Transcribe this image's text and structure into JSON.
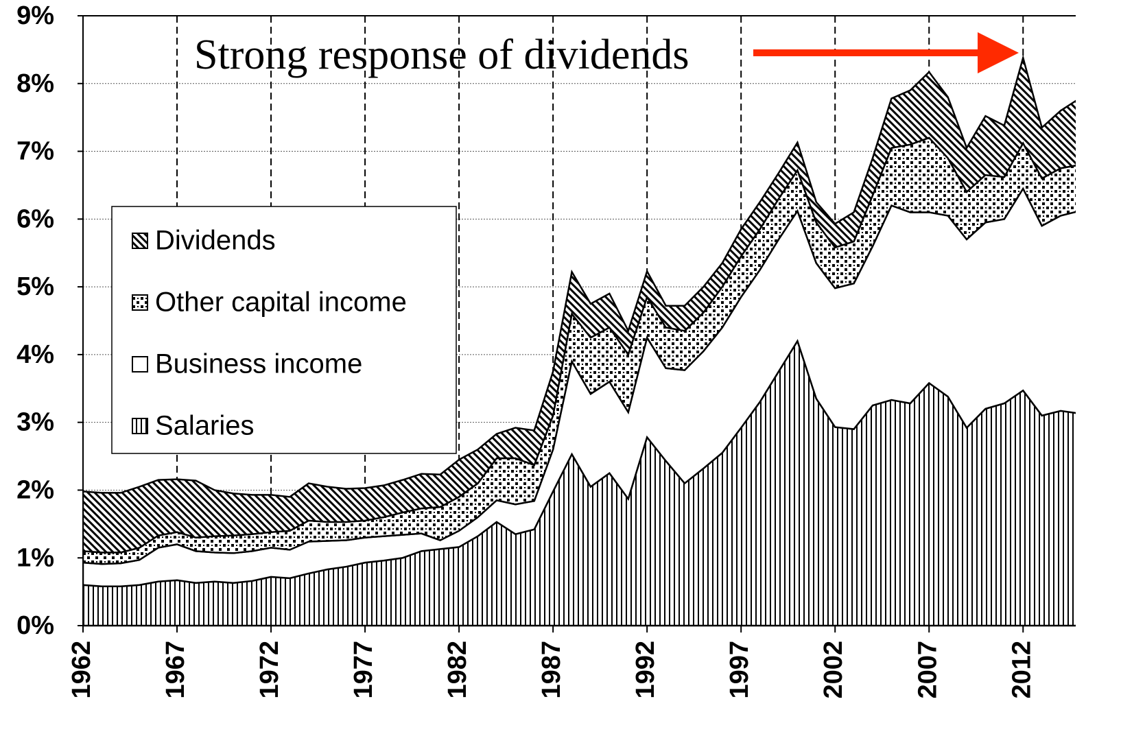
{
  "chart_data": {
    "type": "stacked_area",
    "annotation": "Strong response of dividends",
    "x": [
      1962,
      1963,
      1964,
      1965,
      1966,
      1967,
      1968,
      1969,
      1970,
      1971,
      1972,
      1973,
      1974,
      1975,
      1976,
      1977,
      1978,
      1979,
      1980,
      1981,
      1982,
      1983,
      1984,
      1985,
      1986,
      1987,
      1988,
      1989,
      1990,
      1991,
      1992,
      1993,
      1994,
      1995,
      1996,
      1997,
      1998,
      1999,
      2000,
      2001,
      2002,
      2003,
      2004,
      2005,
      2006,
      2007,
      2008,
      2009,
      2010,
      2011,
      2012,
      2013,
      2014,
      2015
    ],
    "series": [
      {
        "name": "Salaries",
        "color": "#000000",
        "pattern": "vertical",
        "values": [
          0.6,
          0.58,
          0.58,
          0.6,
          0.65,
          0.67,
          0.63,
          0.65,
          0.63,
          0.66,
          0.72,
          0.7,
          0.77,
          0.83,
          0.87,
          0.93,
          0.96,
          1.0,
          1.1,
          1.13,
          1.16,
          1.32,
          1.53,
          1.35,
          1.42,
          1.98,
          2.53,
          2.05,
          2.25,
          1.87,
          2.78,
          2.43,
          2.1,
          2.32,
          2.55,
          2.92,
          3.3,
          3.75,
          4.2,
          3.35,
          2.93,
          2.9,
          3.25,
          3.33,
          3.28,
          3.58,
          3.38,
          2.92,
          3.2,
          3.28,
          3.47,
          3.1,
          3.17,
          3.13
        ]
      },
      {
        "name": "Business income",
        "color": "#000000",
        "pattern": "none",
        "values": [
          0.33,
          0.33,
          0.34,
          0.37,
          0.5,
          0.53,
          0.47,
          0.43,
          0.44,
          0.44,
          0.43,
          0.42,
          0.47,
          0.42,
          0.39,
          0.37,
          0.36,
          0.34,
          0.26,
          0.13,
          0.24,
          0.28,
          0.32,
          0.44,
          0.42,
          0.62,
          1.37,
          1.37,
          1.35,
          1.28,
          1.47,
          1.37,
          1.67,
          1.73,
          1.85,
          1.93,
          1.95,
          1.95,
          1.92,
          2.0,
          2.05,
          2.15,
          2.35,
          2.87,
          2.82,
          2.52,
          2.67,
          2.78,
          2.75,
          2.72,
          2.98,
          2.8,
          2.88,
          2.99
        ]
      },
      {
        "name": "Other capital income",
        "color": "#000000",
        "pattern": "dots",
        "values": [
          0.17,
          0.17,
          0.16,
          0.18,
          0.18,
          0.18,
          0.2,
          0.24,
          0.26,
          0.25,
          0.23,
          0.28,
          0.31,
          0.28,
          0.27,
          0.25,
          0.28,
          0.33,
          0.37,
          0.49,
          0.5,
          0.5,
          0.62,
          0.68,
          0.53,
          0.5,
          0.7,
          0.83,
          0.8,
          0.85,
          0.6,
          0.6,
          0.58,
          0.57,
          0.6,
          0.6,
          0.6,
          0.6,
          0.6,
          0.6,
          0.6,
          0.62,
          0.75,
          0.85,
          1.0,
          1.1,
          0.85,
          0.7,
          0.7,
          0.62,
          0.67,
          0.7,
          0.7,
          0.68
        ]
      },
      {
        "name": "Dividends",
        "color": "#000000",
        "pattern": "diagonal",
        "values": [
          0.88,
          0.88,
          0.88,
          0.9,
          0.82,
          0.78,
          0.84,
          0.68,
          0.62,
          0.58,
          0.55,
          0.5,
          0.55,
          0.52,
          0.49,
          0.48,
          0.47,
          0.48,
          0.51,
          0.48,
          0.55,
          0.5,
          0.36,
          0.45,
          0.51,
          0.65,
          0.62,
          0.5,
          0.5,
          0.35,
          0.38,
          0.32,
          0.37,
          0.38,
          0.35,
          0.4,
          0.4,
          0.38,
          0.41,
          0.3,
          0.35,
          0.43,
          0.55,
          0.73,
          0.8,
          0.97,
          0.9,
          0.65,
          0.87,
          0.76,
          1.26,
          0.75,
          0.85,
          0.98
        ]
      }
    ],
    "xlim": [
      1962,
      2014.8
    ],
    "xticks": [
      1962,
      1967,
      1972,
      1977,
      1982,
      1987,
      1992,
      1997,
      2002,
      2007,
      2012
    ],
    "ylim": [
      0,
      9
    ],
    "yticks": [
      {
        "value": 0,
        "label": "0%"
      },
      {
        "value": 1,
        "label": "1%"
      },
      {
        "value": 2,
        "label": "2%"
      },
      {
        "value": 3,
        "label": "3%"
      },
      {
        "value": 4,
        "label": "4%"
      },
      {
        "value": 5,
        "label": "5%"
      },
      {
        "value": 6,
        "label": "6%"
      },
      {
        "value": 7,
        "label": "7%"
      },
      {
        "value": 8,
        "label": "8%"
      },
      {
        "value": 9,
        "label": "9%"
      }
    ],
    "grid": true,
    "legend": "left",
    "annotation_color": "#ff2a00"
  }
}
